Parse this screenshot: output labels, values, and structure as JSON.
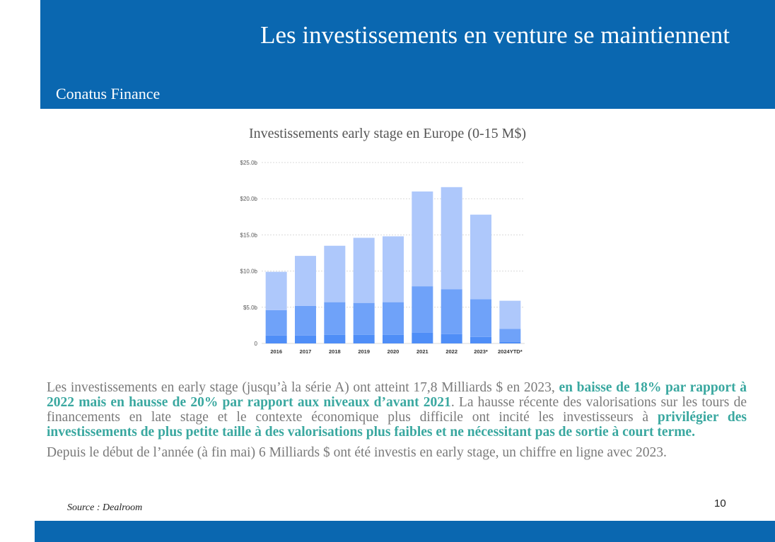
{
  "header": {
    "title": "Les investissements en venture se maintiennent",
    "subtitle": "Conatus Finance"
  },
  "chart_title": "Investissements early stage en Europe (0-15 M$)",
  "chart_data": {
    "type": "bar",
    "stacked": true,
    "title": "Investissements early stage en Europe (0-15 M$)",
    "categories": [
      "2016",
      "2017",
      "2018",
      "2019",
      "2020",
      "2021",
      "2022",
      "2023*",
      "2024YTD*"
    ],
    "y_tick_labels": [
      "0",
      "$5.0b",
      "$10.0b",
      "$15.0b",
      "$20.0b",
      "$25.0b"
    ],
    "ylim": [
      0,
      25
    ],
    "grid": true,
    "colors": [
      "#4f8ef7",
      "#6fa2f9",
      "#aec8fb"
    ],
    "series": [
      {
        "values": [
          1.1,
          1.1,
          1.2,
          1.2,
          1.2,
          1.5,
          1.3,
          0.9,
          0.2
        ]
      },
      {
        "values": [
          3.5,
          4.1,
          4.5,
          4.4,
          4.5,
          6.4,
          6.2,
          5.2,
          1.8
        ]
      },
      {
        "values": [
          5.3,
          6.9,
          7.8,
          9.0,
          9.1,
          13.1,
          14.1,
          11.7,
          3.9
        ]
      }
    ]
  },
  "body": {
    "p1_a": "Les investissements en early stage (jusqu’à la série A) ont atteint 17,8 Milliards $ en 2023, ",
    "p1_b": "en baisse de 18% par rapport à 2022 mais en hausse de 20% par rapport aux niveaux d’avant 2021",
    "p1_c": ". La hausse récente des valorisations sur les tours de financements en late stage et le contexte économique plus difficile ont incité les investisseurs à ",
    "p1_d": "privilégier des investissements de plus petite taille à des valorisations plus faibles et ne nécessitant pas de sortie à court terme.",
    "p2": "Depuis le début de l’année (à fin mai) 6 Milliards $ ont été investis en early stage, un chiffre en ligne avec 2023."
  },
  "source": "Source : Dealroom",
  "page_number": "10"
}
